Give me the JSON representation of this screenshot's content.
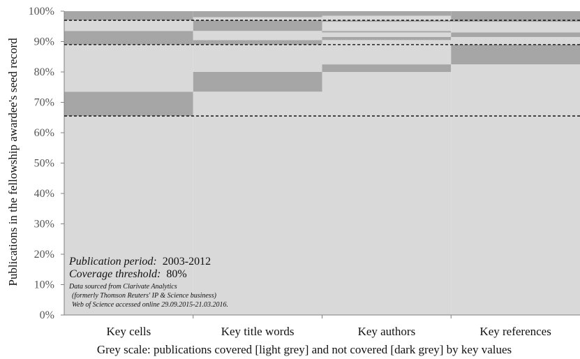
{
  "chart_data": {
    "type": "bar",
    "ylabel": "Publications in the fellowship awardee's seed record",
    "xlabel": "Grey scale: publications covered [light grey] and not covered [dark grey] by key values",
    "ylim": [
      0,
      100
    ],
    "yticks": [
      "0%",
      "10%",
      "20%",
      "30%",
      "40%",
      "50%",
      "60%",
      "70%",
      "80%",
      "90%",
      "100%"
    ],
    "categories": [
      "Key cells",
      "Key title words",
      "Key authors",
      "Key references"
    ],
    "segments": [
      [
        {
          "from": 0,
          "to": 65.5,
          "covered": true
        },
        {
          "from": 65.5,
          "to": 73.5,
          "covered": false
        },
        {
          "from": 73.5,
          "to": 89,
          "covered": true
        },
        {
          "from": 89,
          "to": 93.5,
          "covered": false
        },
        {
          "from": 93.5,
          "to": 97,
          "covered": true
        },
        {
          "from": 97,
          "to": 100,
          "covered": false
        }
      ],
      [
        {
          "from": 0,
          "to": 73.5,
          "covered": true
        },
        {
          "from": 73.5,
          "to": 80,
          "covered": false
        },
        {
          "from": 80,
          "to": 89,
          "covered": true
        },
        {
          "from": 89,
          "to": 90.5,
          "covered": false
        },
        {
          "from": 90.5,
          "to": 93.5,
          "covered": true
        },
        {
          "from": 93.5,
          "to": 97,
          "covered": false
        },
        {
          "from": 97,
          "to": 98,
          "covered": true
        },
        {
          "from": 98,
          "to": 100,
          "covered": false
        }
      ],
      [
        {
          "from": 0,
          "to": 80,
          "covered": true
        },
        {
          "from": 80,
          "to": 82.5,
          "covered": false
        },
        {
          "from": 82.5,
          "to": 90.5,
          "covered": true
        },
        {
          "from": 90.5,
          "to": 91.5,
          "covered": false
        },
        {
          "from": 91.5,
          "to": 93,
          "covered": true
        },
        {
          "from": 93,
          "to": 93.5,
          "covered": false
        },
        {
          "from": 93.5,
          "to": 96.5,
          "covered": true
        },
        {
          "from": 96.5,
          "to": 97,
          "covered": false
        },
        {
          "from": 97,
          "to": 98.5,
          "covered": true
        },
        {
          "from": 98.5,
          "to": 100,
          "covered": false
        }
      ],
      [
        {
          "from": 0,
          "to": 82.5,
          "covered": true
        },
        {
          "from": 82.5,
          "to": 89,
          "covered": false
        },
        {
          "from": 89,
          "to": 91.5,
          "covered": true
        },
        {
          "from": 91.5,
          "to": 93,
          "covered": false
        },
        {
          "from": 93,
          "to": 96.5,
          "covered": true
        },
        {
          "from": 96.5,
          "to": 100,
          "covered": false
        }
      ]
    ],
    "reference_lines": [
      65.5,
      89,
      97
    ],
    "annotation": {
      "period_label": "Publication period:",
      "period_value": "2003-2012",
      "threshold_label": "Coverage threshold:",
      "threshold_value": "80%",
      "source_lines": [
        "Data sourced from Clarivate Analytics",
        "(formerly Thomson Reuters' IP & Science business)",
        "Web of Science accessed online 29.09.2015-21.03.2016."
      ]
    },
    "colors": {
      "covered": "#d9d9d9",
      "not_covered": "#a6a6a6",
      "reference_line": "#000000"
    }
  }
}
